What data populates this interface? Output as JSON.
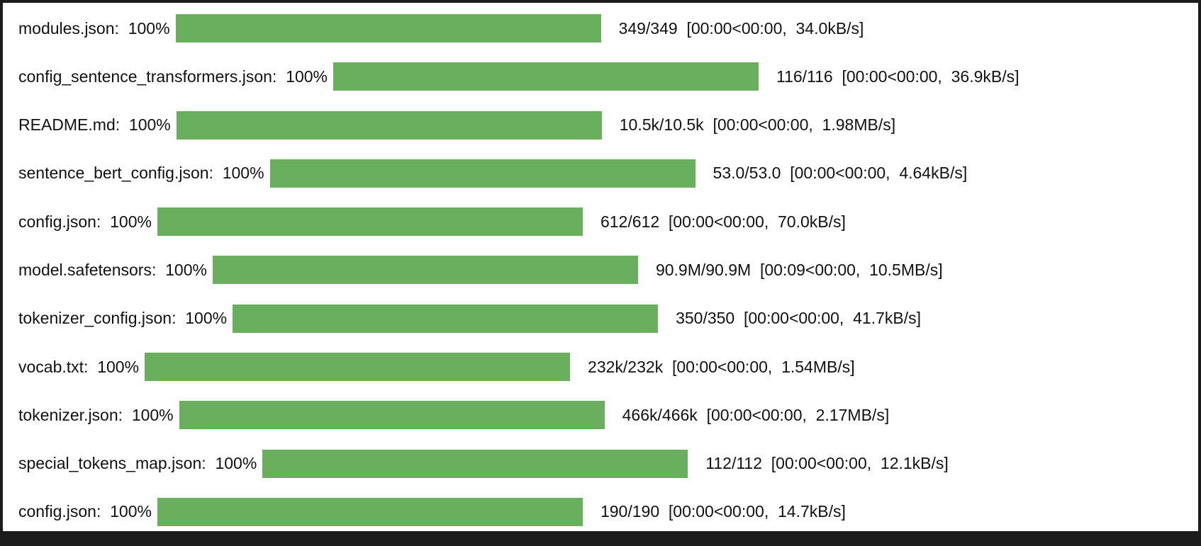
{
  "colors": {
    "bar_fill": "#6aaf5e",
    "background": "#ffffff",
    "frame": "#1c1c1c",
    "text": "#111111"
  },
  "downloads": [
    {
      "file": "modules.json",
      "percent": "100%",
      "progress": 100,
      "size": "349/349",
      "timing": "[00:00<00:00,  34.0kB/s]"
    },
    {
      "file": "config_sentence_transformers.json",
      "percent": "100%",
      "progress": 100,
      "size": "116/116",
      "timing": "[00:00<00:00,  36.9kB/s]"
    },
    {
      "file": "README.md",
      "percent": "100%",
      "progress": 100,
      "size": "10.5k/10.5k",
      "timing": "[00:00<00:00,  1.98MB/s]"
    },
    {
      "file": "sentence_bert_config.json",
      "percent": "100%",
      "progress": 100,
      "size": "53.0/53.0",
      "timing": "[00:00<00:00,  4.64kB/s]"
    },
    {
      "file": "config.json",
      "percent": "100%",
      "progress": 100,
      "size": "612/612",
      "timing": "[00:00<00:00,  70.0kB/s]"
    },
    {
      "file": "model.safetensors",
      "percent": "100%",
      "progress": 100,
      "size": "90.9M/90.9M",
      "timing": "[00:09<00:00,  10.5MB/s]"
    },
    {
      "file": "tokenizer_config.json",
      "percent": "100%",
      "progress": 100,
      "size": "350/350",
      "timing": "[00:00<00:00,  41.7kB/s]"
    },
    {
      "file": "vocab.txt",
      "percent": "100%",
      "progress": 100,
      "size": "232k/232k",
      "timing": "[00:00<00:00,  1.54MB/s]"
    },
    {
      "file": "tokenizer.json",
      "percent": "100%",
      "progress": 100,
      "size": "466k/466k",
      "timing": "[00:00<00:00,  2.17MB/s]"
    },
    {
      "file": "special_tokens_map.json",
      "percent": "100%",
      "progress": 100,
      "size": "112/112",
      "timing": "[00:00<00:00,  12.1kB/s]"
    },
    {
      "file": "config.json",
      "percent": "100%",
      "progress": 100,
      "size": "190/190",
      "timing": "[00:00<00:00,  14.7kB/s]"
    }
  ]
}
